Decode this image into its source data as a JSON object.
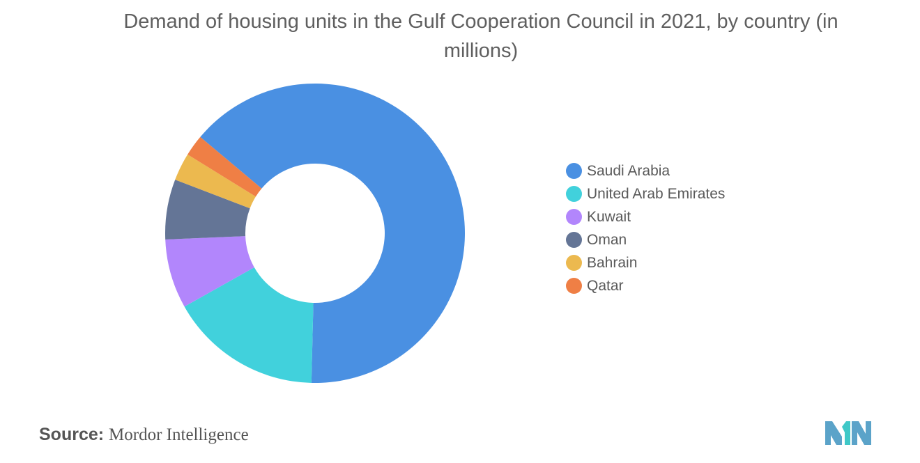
{
  "chart_data": {
    "type": "pie",
    "donut": true,
    "title": "Demand of housing units in the Gulf Cooperation Council in 2021, by country (in millions)",
    "categories": [
      "Saudi Arabia",
      "United Arab Emirates",
      "Kuwait",
      "Oman",
      "Bahrain",
      "Qatar"
    ],
    "values": [
      64.4,
      16.5,
      7.5,
      6.5,
      3.0,
      2.3
    ],
    "colors": [
      "#4a90e2",
      "#41d1dc",
      "#b286fc",
      "#647596",
      "#ecb94f",
      "#ef7f45"
    ],
    "legend_position": "right"
  },
  "source": {
    "label": "Source:",
    "value": "Mordor Intelligence"
  },
  "logo": {
    "icon": "mordor-intelligence-logo-icon",
    "colors": [
      "#5ba3c9",
      "#3fc8c7"
    ]
  }
}
